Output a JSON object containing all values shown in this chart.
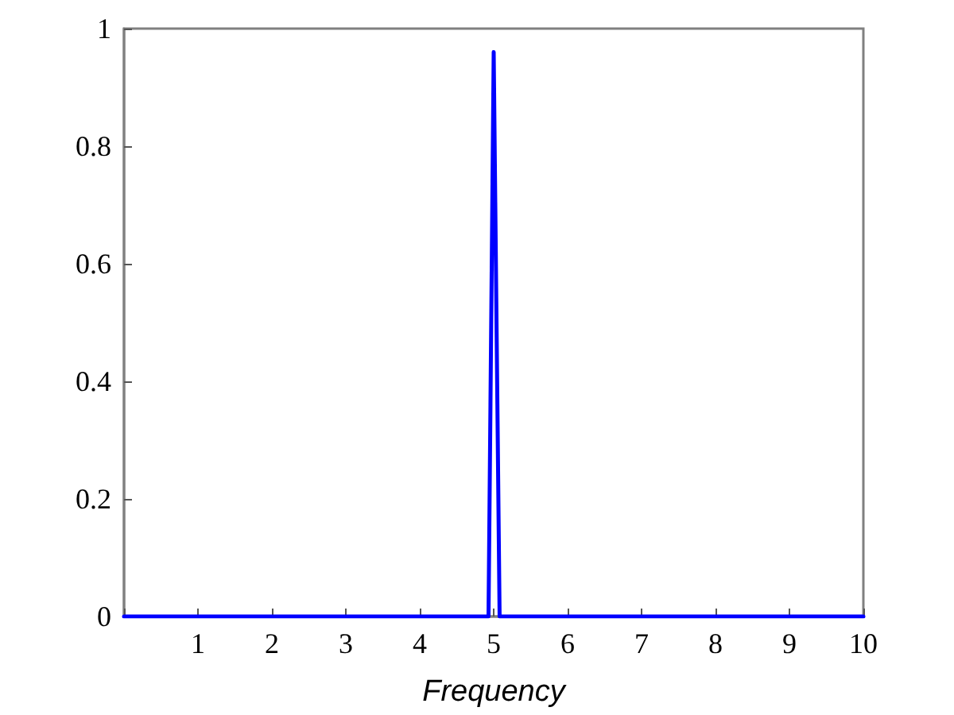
{
  "chart_data": {
    "type": "line",
    "xlabel": "Frequency",
    "series": [
      {
        "color": "#0000ff",
        "x": [
          0,
          4.93,
          5.0,
          5.08,
          10
        ],
        "values": [
          0,
          0,
          0.96,
          0,
          0
        ]
      }
    ],
    "xlim": [
      0,
      10
    ],
    "xticks": [
      {
        "value": 0,
        "label": null
      },
      1,
      2,
      3,
      4,
      5,
      6,
      7,
      8,
      9,
      10
    ],
    "ylim": [
      0,
      1
    ],
    "yticks": [
      0,
      0.2,
      0.4,
      0.6,
      0.8,
      1
    ],
    "grid": false,
    "marker": "none",
    "line_style": "solid"
  }
}
